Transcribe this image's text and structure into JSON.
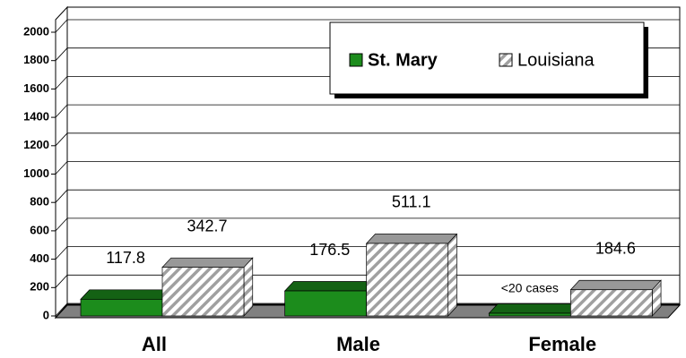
{
  "chart_data": {
    "type": "bar",
    "categories": [
      "All",
      "Male",
      "Female"
    ],
    "series": [
      {
        "name": "St. Mary",
        "color": "#1c8c1c",
        "values": [
          117.8,
          176.5,
          null
        ]
      },
      {
        "name": "Louisiana",
        "color": "#a0a0a0",
        "values": [
          342.7,
          511.1,
          184.6
        ]
      }
    ],
    "annotation": "<20 cases",
    "ylim": [
      0,
      2000
    ],
    "yticks": [
      0,
      200,
      400,
      600,
      800,
      1000,
      1200,
      1400,
      1600,
      1800,
      2000
    ],
    "grid": true
  }
}
